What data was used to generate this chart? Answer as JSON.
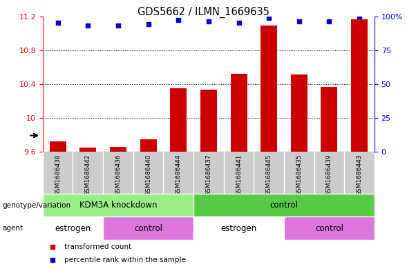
{
  "title": "GDS5662 / ILMN_1669635",
  "samples": [
    "GSM1686438",
    "GSM1686442",
    "GSM1686436",
    "GSM1686440",
    "GSM1686444",
    "GSM1686437",
    "GSM1686441",
    "GSM1686445",
    "GSM1686435",
    "GSM1686439",
    "GSM1686443"
  ],
  "bar_values": [
    9.72,
    9.65,
    9.66,
    9.75,
    10.35,
    10.33,
    10.52,
    11.09,
    10.51,
    10.37,
    11.16
  ],
  "dot_values_pct": [
    95,
    93,
    93,
    94,
    97,
    96,
    95,
    99,
    96,
    96,
    100
  ],
  "ylim_left": [
    9.6,
    11.2
  ],
  "ylim_right": [
    0,
    100
  ],
  "yticks_left": [
    9.6,
    10.0,
    10.4,
    10.8,
    11.2
  ],
  "ytick_labels_left": [
    "9.6",
    "10",
    "10.4",
    "10.8",
    "11.2"
  ],
  "yticks_right": [
    0,
    25,
    50,
    75,
    100
  ],
  "ytick_labels_right": [
    "0",
    "25",
    "50",
    "75",
    "100%"
  ],
  "bar_color": "#cc0000",
  "dot_color": "#0000cc",
  "chart_bg": "#ffffff",
  "sample_bg": "#cccccc",
  "genotype_groups": [
    {
      "label": "KDM3A knockdown",
      "start": 0,
      "end": 5,
      "color": "#99ee88"
    },
    {
      "label": "control",
      "start": 5,
      "end": 11,
      "color": "#55cc44"
    }
  ],
  "agent_groups": [
    {
      "label": "estrogen",
      "start": 0,
      "end": 2,
      "color": "#ffffff"
    },
    {
      "label": "control",
      "start": 2,
      "end": 5,
      "color": "#dd77dd"
    },
    {
      "label": "estrogen",
      "start": 5,
      "end": 8,
      "color": "#ffffff"
    },
    {
      "label": "control",
      "start": 8,
      "end": 11,
      "color": "#dd77dd"
    }
  ],
  "genotype_label": "genotype/variation",
  "agent_label": "agent",
  "legend_items": [
    {
      "label": "transformed count",
      "color": "#cc0000"
    },
    {
      "label": "percentile rank within the sample",
      "color": "#0000cc"
    }
  ],
  "bar_baseline": 9.6
}
